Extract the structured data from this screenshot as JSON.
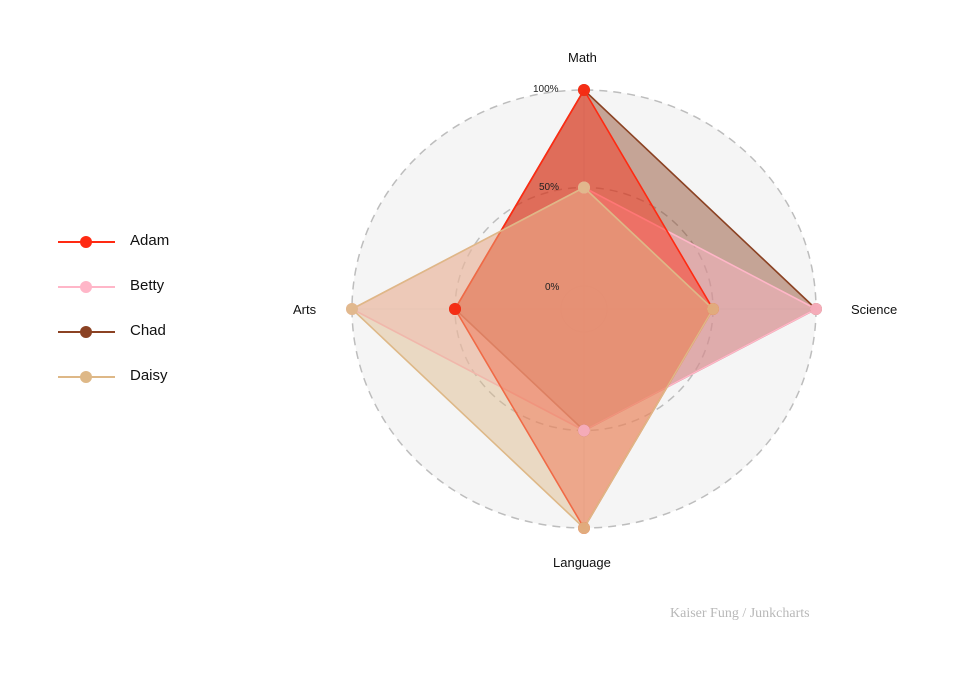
{
  "chart_data": {
    "type": "radar",
    "title": "",
    "categories": [
      "Math",
      "Science",
      "Language",
      "Arts"
    ],
    "radial_ticks": [
      "0%",
      "50%",
      "100%"
    ],
    "range": [
      0,
      100
    ],
    "series": [
      {
        "name": "Adam",
        "color": "#ff2a12",
        "values": [
          100,
          50,
          100,
          50
        ]
      },
      {
        "name": "Betty",
        "color": "#ffb6c8",
        "values": [
          50,
          100,
          50,
          100
        ]
      },
      {
        "name": "Chad",
        "color": "#8b4223",
        "values": [
          100,
          100,
          50,
          50
        ]
      },
      {
        "name": "Daisy",
        "color": "#deb887",
        "values": [
          50,
          50,
          100,
          100
        ]
      }
    ],
    "legend_position": "left",
    "grid": "dashed circles at 50% and 100%"
  },
  "legend": {
    "items": [
      {
        "label": "Adam",
        "color": "#ff2a12"
      },
      {
        "label": "Betty",
        "color": "#ffb6c8"
      },
      {
        "label": "Chad",
        "color": "#8b4223"
      },
      {
        "label": "Daisy",
        "color": "#deb887"
      }
    ]
  },
  "axes": {
    "math": "Math",
    "science": "Science",
    "language": "Language",
    "arts": "Arts"
  },
  "ticks": {
    "t0": "0%",
    "t50": "50%",
    "t100": "100%"
  },
  "credit": "Kaiser Fung / Junkcharts",
  "colors": {
    "background_disc": "#f5f5f5",
    "grid": "#bdbdbd"
  }
}
